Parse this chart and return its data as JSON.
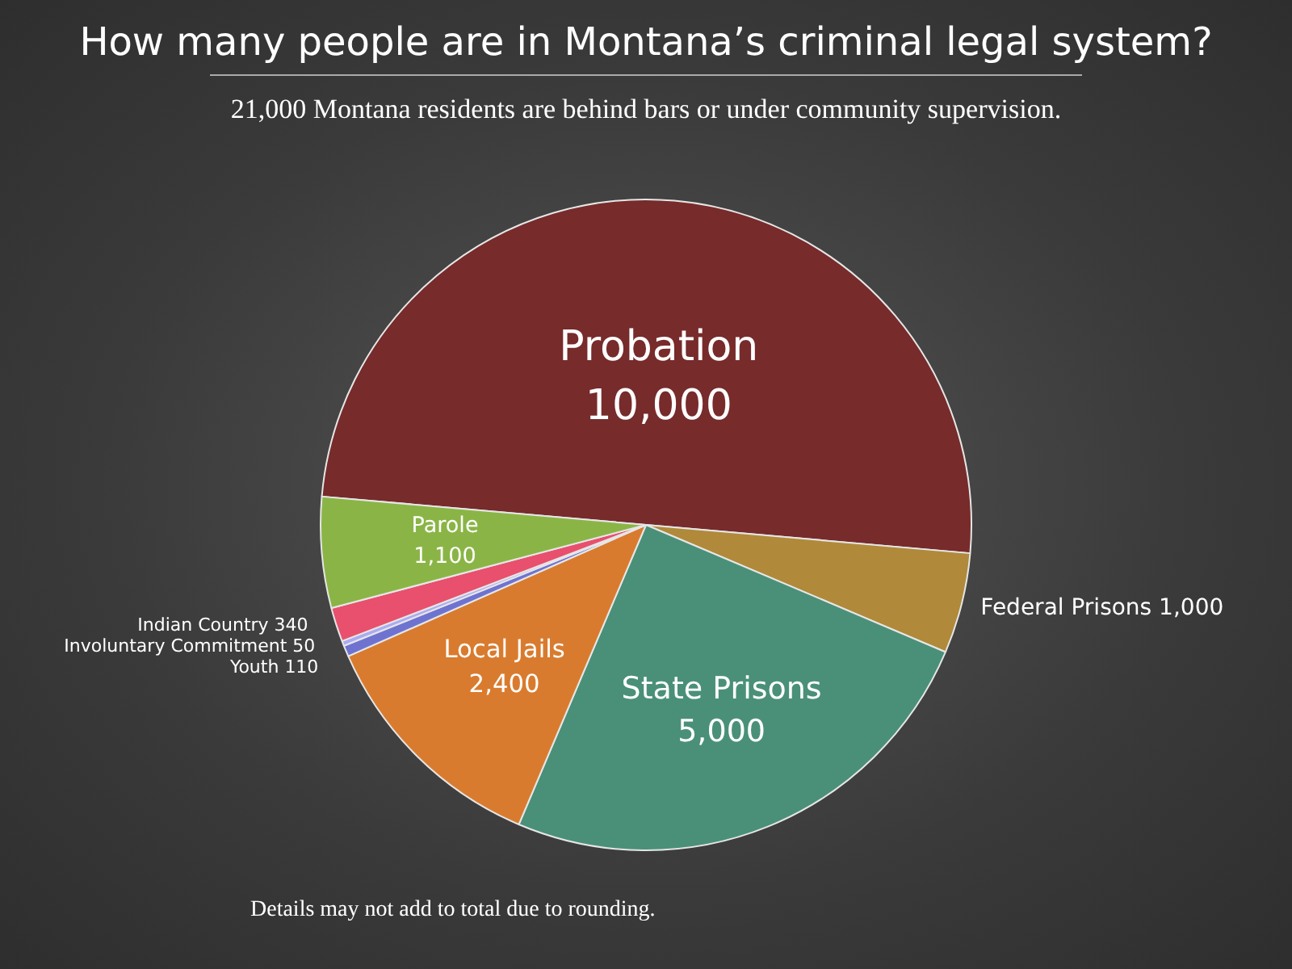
{
  "chart_data": {
    "type": "pie",
    "title": "How many people are in Montana’s criminal legal system?",
    "subtitle": "21,000 Montana residents are behind bars or under community supervision.",
    "categories": [
      "Probation",
      "Federal Prisons",
      "State Prisons",
      "Local Jails",
      "Youth",
      "Involuntary Commitment",
      "Indian Country",
      "Parole"
    ],
    "values": [
      10000,
      1000,
      5000,
      2400,
      110,
      50,
      340,
      1100
    ],
    "colors": [
      "#772b2b",
      "#b08a3a",
      "#4a9079",
      "#d97b2e",
      "#6f73d0",
      "#a9acf2",
      "#e8506e",
      "#8ab546"
    ],
    "value_labels": [
      "10,000",
      "1,000",
      "5,000",
      "2,400",
      "110",
      "50",
      "340",
      "1,100"
    ],
    "legend": false,
    "annotations": [
      "Details may not add to total due to rounding."
    ]
  }
}
